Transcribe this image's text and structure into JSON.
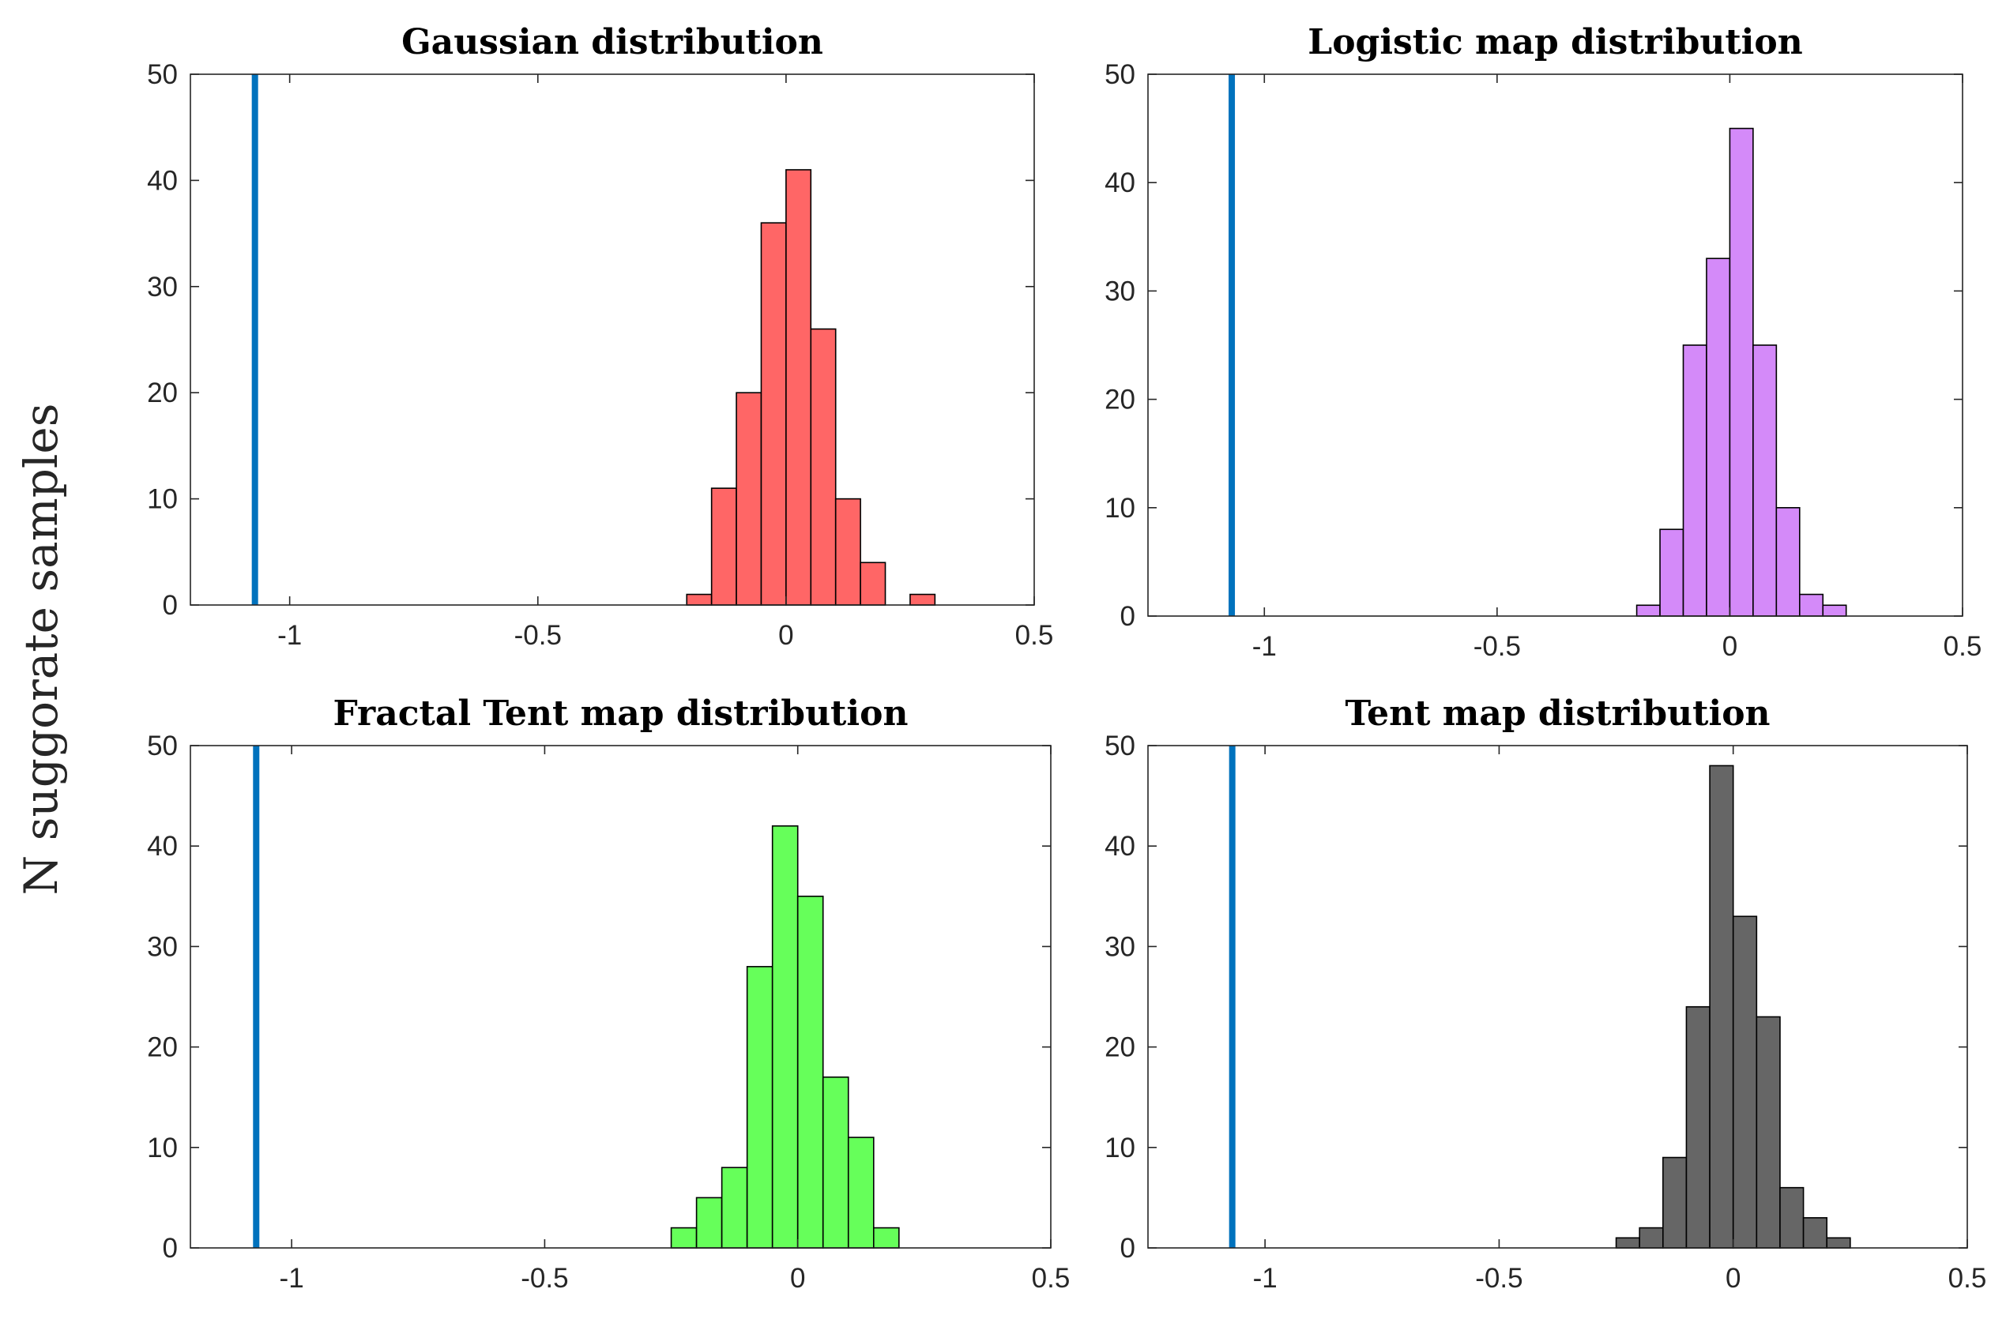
{
  "figure": {
    "ylabel": "N suggorate samples",
    "reference_line_color": "#0072BD",
    "bar_edge_color": "#000000"
  },
  "chart_data": [
    {
      "type": "bar",
      "title": "Gaussian distribution",
      "xlabel": "",
      "ylabel": "N suggorate samples",
      "xlim": [
        -1.2,
        0.5
      ],
      "ylim": [
        0,
        50
      ],
      "xticks": [
        -1,
        -0.5,
        0,
        0.5
      ],
      "xtick_labels": [
        "-1",
        "-0.5",
        "0",
        "0.5"
      ],
      "yticks": [
        0,
        10,
        20,
        30,
        40,
        50
      ],
      "ytick_labels": [
        "0",
        "10",
        "20",
        "30",
        "40",
        "50"
      ],
      "bar_color": "#FF6666",
      "bin_width": 0.05,
      "bins_start": [
        -0.2,
        -0.15,
        -0.1,
        -0.05,
        0.0,
        0.05,
        0.1,
        0.15,
        0.2,
        0.25
      ],
      "values": [
        1,
        11,
        20,
        36,
        41,
        26,
        10,
        4,
        0,
        1
      ],
      "reference_line_x": -1.07
    },
    {
      "type": "bar",
      "title": "Logistic map distribution",
      "xlabel": "",
      "ylabel": "",
      "xlim": [
        -1.25,
        0.5
      ],
      "ylim": [
        0,
        50
      ],
      "xticks": [
        -1,
        -0.5,
        0,
        0.5
      ],
      "xtick_labels": [
        "-1",
        "-0.5",
        "0",
        "0.5"
      ],
      "yticks": [
        0,
        10,
        20,
        30,
        40,
        50
      ],
      "ytick_labels": [
        "0",
        "10",
        "20",
        "30",
        "40",
        "50"
      ],
      "bar_color": "#D48AF9",
      "bin_width": 0.05,
      "bins_start": [
        -0.2,
        -0.15,
        -0.1,
        -0.05,
        0.0,
        0.05,
        0.1,
        0.15,
        0.2
      ],
      "values": [
        1,
        8,
        25,
        33,
        45,
        25,
        10,
        2,
        1
      ],
      "reference_line_x": -1.07
    },
    {
      "type": "bar",
      "title": "Fractal Tent map distribution",
      "xlabel": "",
      "ylabel": "",
      "xlim": [
        -1.2,
        0.5
      ],
      "ylim": [
        0,
        50
      ],
      "xticks": [
        -1,
        -0.5,
        0,
        0.5
      ],
      "xtick_labels": [
        "-1",
        "-0.5",
        "0",
        "0.5"
      ],
      "yticks": [
        0,
        10,
        20,
        30,
        40,
        50
      ],
      "ytick_labels": [
        "0",
        "10",
        "20",
        "30",
        "40",
        "50"
      ],
      "bar_color": "#66FF5A",
      "bin_width": 0.05,
      "bins_start": [
        -0.25,
        -0.2,
        -0.15,
        -0.1,
        -0.05,
        0.0,
        0.05,
        0.1,
        0.15
      ],
      "values": [
        2,
        5,
        8,
        28,
        42,
        35,
        17,
        11,
        2
      ],
      "reference_line_x": -1.07
    },
    {
      "type": "bar",
      "title": "Tent map distribution",
      "xlabel": "",
      "ylabel": "",
      "xlim": [
        -1.25,
        0.5
      ],
      "ylim": [
        0,
        50
      ],
      "xticks": [
        -1,
        -0.5,
        0,
        0.5
      ],
      "xtick_labels": [
        "-1",
        "-0.5",
        "0",
        "0.5"
      ],
      "yticks": [
        0,
        10,
        20,
        30,
        40,
        50
      ],
      "ytick_labels": [
        "0",
        "10",
        "20",
        "30",
        "40",
        "50"
      ],
      "bar_color": "#666666",
      "bin_width": 0.05,
      "bins_start": [
        -0.25,
        -0.2,
        -0.15,
        -0.1,
        -0.05,
        0.0,
        0.05,
        0.1,
        0.15,
        0.2
      ],
      "values": [
        1,
        2,
        9,
        24,
        48,
        33,
        23,
        6,
        3,
        1
      ],
      "reference_line_x": -1.07
    }
  ]
}
